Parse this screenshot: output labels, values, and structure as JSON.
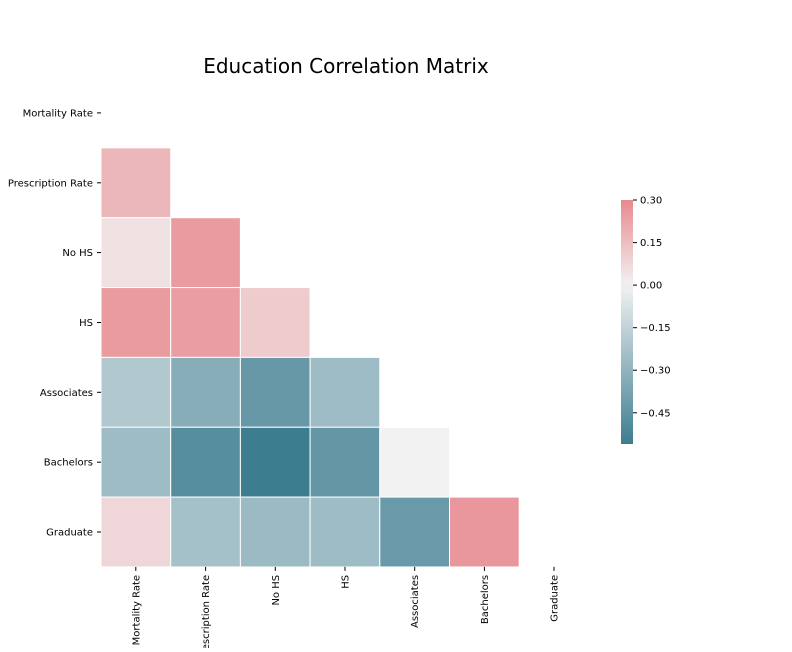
{
  "chart_data": {
    "type": "heatmap",
    "title": "Education Correlation Matrix",
    "rows": [
      "Mortality Rate",
      "Prescription Rate",
      "No HS",
      "HS",
      "Associates",
      "Bachelors",
      "Graduate"
    ],
    "columns": [
      "Mortality Rate",
      "Prescription Rate",
      "No HS",
      "HS",
      "Associates",
      "Bachelors",
      "Graduate"
    ],
    "mask": "upper-triangle",
    "values": [
      [
        null,
        null,
        null,
        null,
        null,
        null,
        null
      ],
      [
        0.17,
        null,
        null,
        null,
        null,
        null,
        null
      ],
      [
        0.05,
        0.25,
        null,
        null,
        null,
        null,
        null
      ],
      [
        0.25,
        0.24,
        0.11,
        null,
        null,
        null,
        null
      ],
      [
        -0.2,
        -0.33,
        -0.43,
        -0.26,
        null,
        null,
        null
      ],
      [
        -0.26,
        -0.48,
        -0.56,
        -0.44,
        0.0,
        null,
        null
      ],
      [
        0.08,
        -0.24,
        -0.27,
        -0.26,
        -0.42,
        0.26,
        null
      ]
    ],
    "colorbar": {
      "vmin": -0.56,
      "vmax": 0.3,
      "ticks": [
        0.3,
        0.15,
        0.0,
        -0.15,
        -0.3,
        -0.45
      ],
      "tick_labels": [
        "0.30",
        "0.15",
        "0.00",
        "−0.15",
        "−0.30",
        "−0.45"
      ]
    },
    "colors": {
      "negative": "#3d7d90",
      "center": "#f2f2f2",
      "positive": "#e8898f"
    }
  }
}
